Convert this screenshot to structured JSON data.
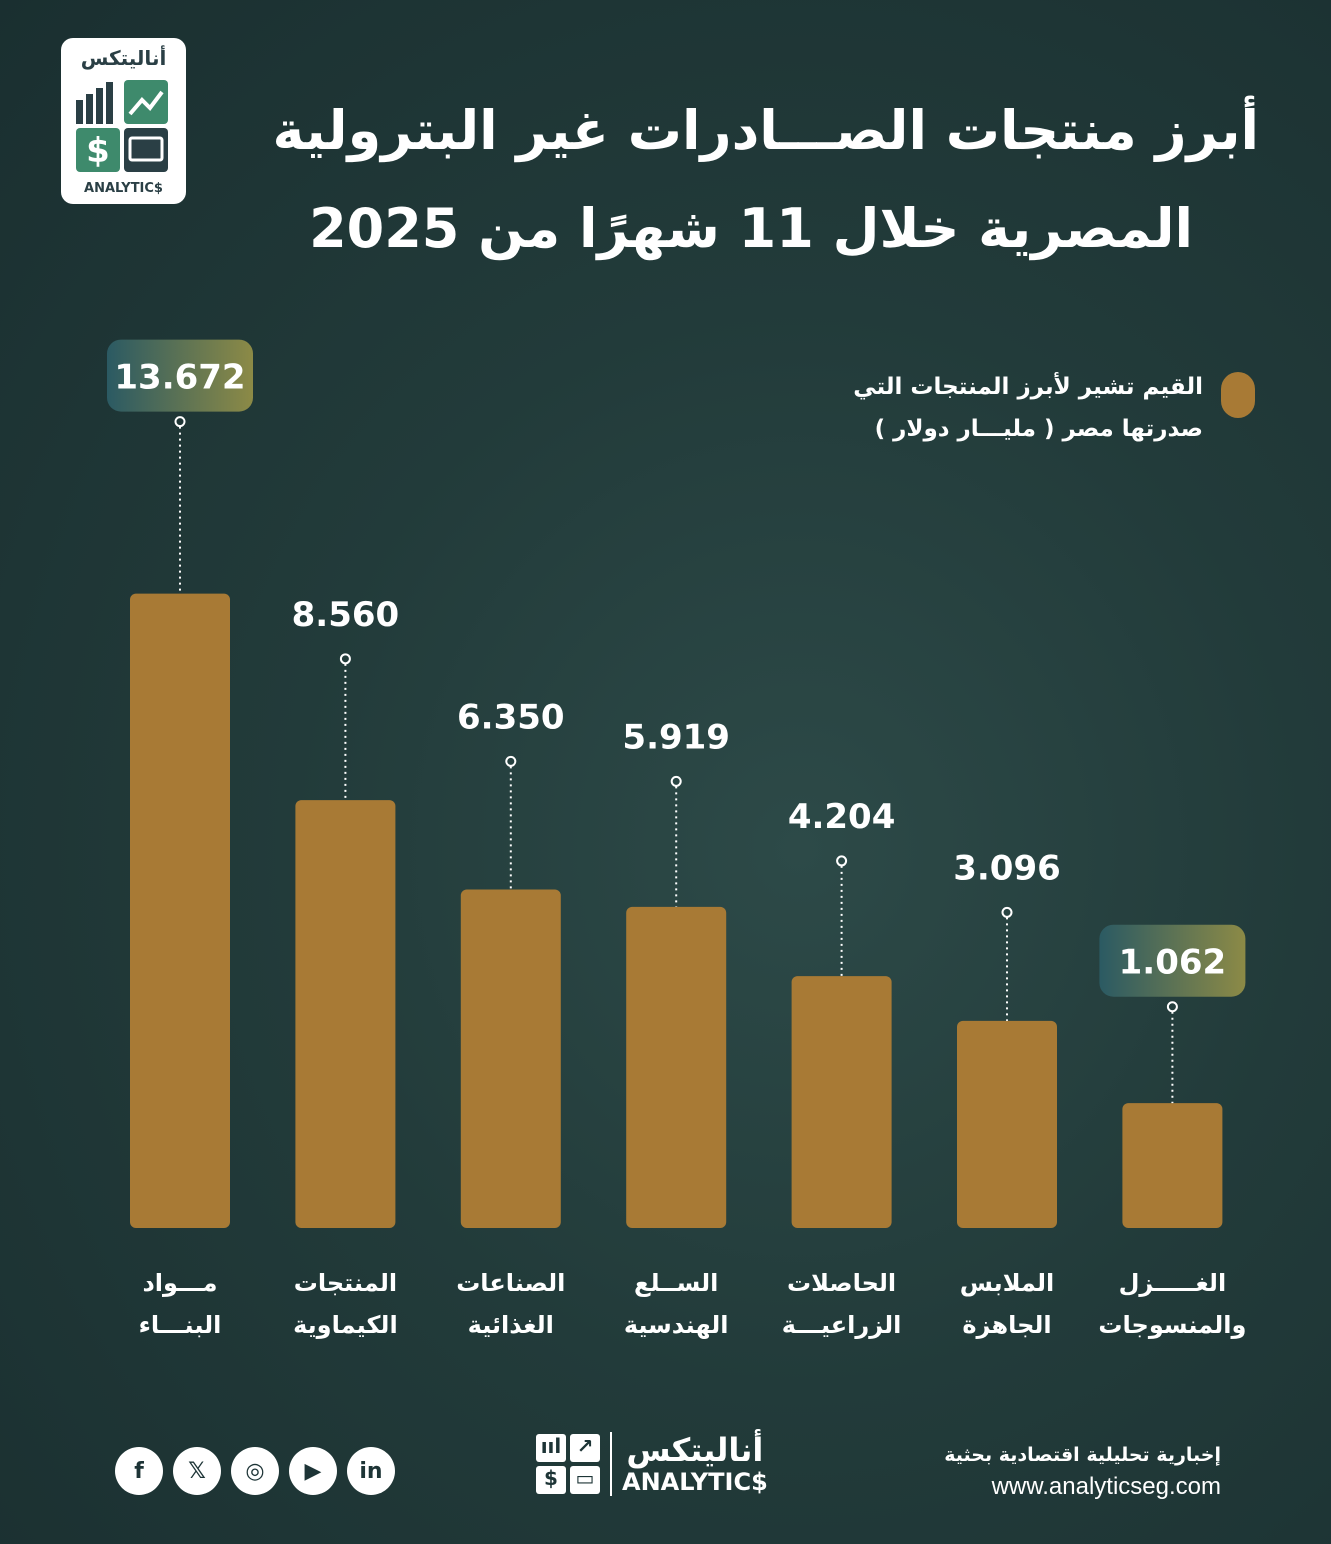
{
  "header": {
    "logo_ar": "أناليتكس",
    "logo_en": "ANALYTIC$",
    "title_line1": "أبرز منتجات الصـــادرات غير البترولية",
    "title_line2": "المصرية خلال 11 شهرًا من 2025"
  },
  "legend": {
    "line1": "القيم تشير لأبرز المنتجات التي",
    "line2": "صدرتها مصر ( مليـــار دولار )"
  },
  "colors": {
    "bar": "#a87a35",
    "highlight_start": "#2b5a63",
    "highlight_end": "#8c8a46"
  },
  "chart_data": {
    "type": "bar",
    "title": "أبرز منتجات الصادرات غير البترولية المصرية خلال 11 شهرًا من 2025",
    "unit": "مليار دولار",
    "categories": [
      [
        "مـــواد",
        "البنـــاء"
      ],
      [
        "المنتجات",
        "الكيماوية"
      ],
      [
        "الصناعات",
        "الغذائية"
      ],
      [
        "الســلع",
        "الهندسية"
      ],
      [
        "الحاصلات",
        "الزراعيـــة"
      ],
      [
        "الملابس",
        "الجاهزة"
      ],
      [
        "الغـــــزل",
        "والمنسوجات"
      ]
    ],
    "values": [
      13.672,
      8.56,
      6.35,
      5.919,
      4.204,
      3.096,
      1.062
    ],
    "labels": [
      "13.672",
      "8.560",
      "6.350",
      "5.919",
      "4.204",
      "3.096",
      "1.062"
    ],
    "highlighted": [
      0,
      6
    ],
    "grid": false
  },
  "footer": {
    "social": [
      "facebook",
      "x",
      "instagram",
      "youtube",
      "linkedin"
    ],
    "social_glyphs": [
      "f",
      "𝕏",
      "◎",
      "▶",
      "in"
    ],
    "logo_ar": "أناليتكس",
    "logo_en": "ANALYTIC$",
    "tagline": "إخبارية تحليلية اقتصادية بحثية",
    "url": "www.analyticseg.com"
  }
}
